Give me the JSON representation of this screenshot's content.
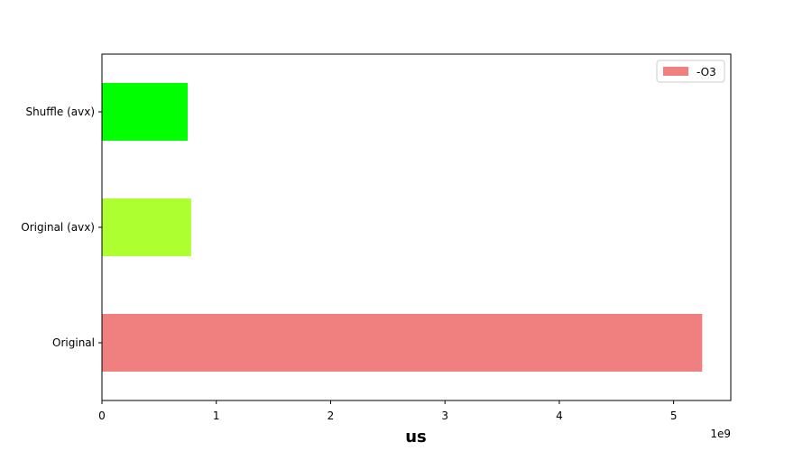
{
  "chart_data": {
    "type": "bar",
    "orientation": "horizontal",
    "categories": [
      "Original",
      "Original (avx)",
      "Shuffle (avx)"
    ],
    "values": [
      5250000000,
      780000000,
      750000000
    ],
    "bar_colors": [
      "#f08080",
      "#adff2f",
      "#00ff00"
    ],
    "series": [
      {
        "name": "-O3",
        "color": "#f08080"
      }
    ],
    "xlabel": "us",
    "ylabel": "",
    "title": "",
    "xlim": [
      0,
      5500000000
    ],
    "xticks": [
      0,
      1,
      2,
      3,
      4,
      5
    ],
    "offset_text": "1e9",
    "legend_position": "upper right",
    "grid": false
  }
}
